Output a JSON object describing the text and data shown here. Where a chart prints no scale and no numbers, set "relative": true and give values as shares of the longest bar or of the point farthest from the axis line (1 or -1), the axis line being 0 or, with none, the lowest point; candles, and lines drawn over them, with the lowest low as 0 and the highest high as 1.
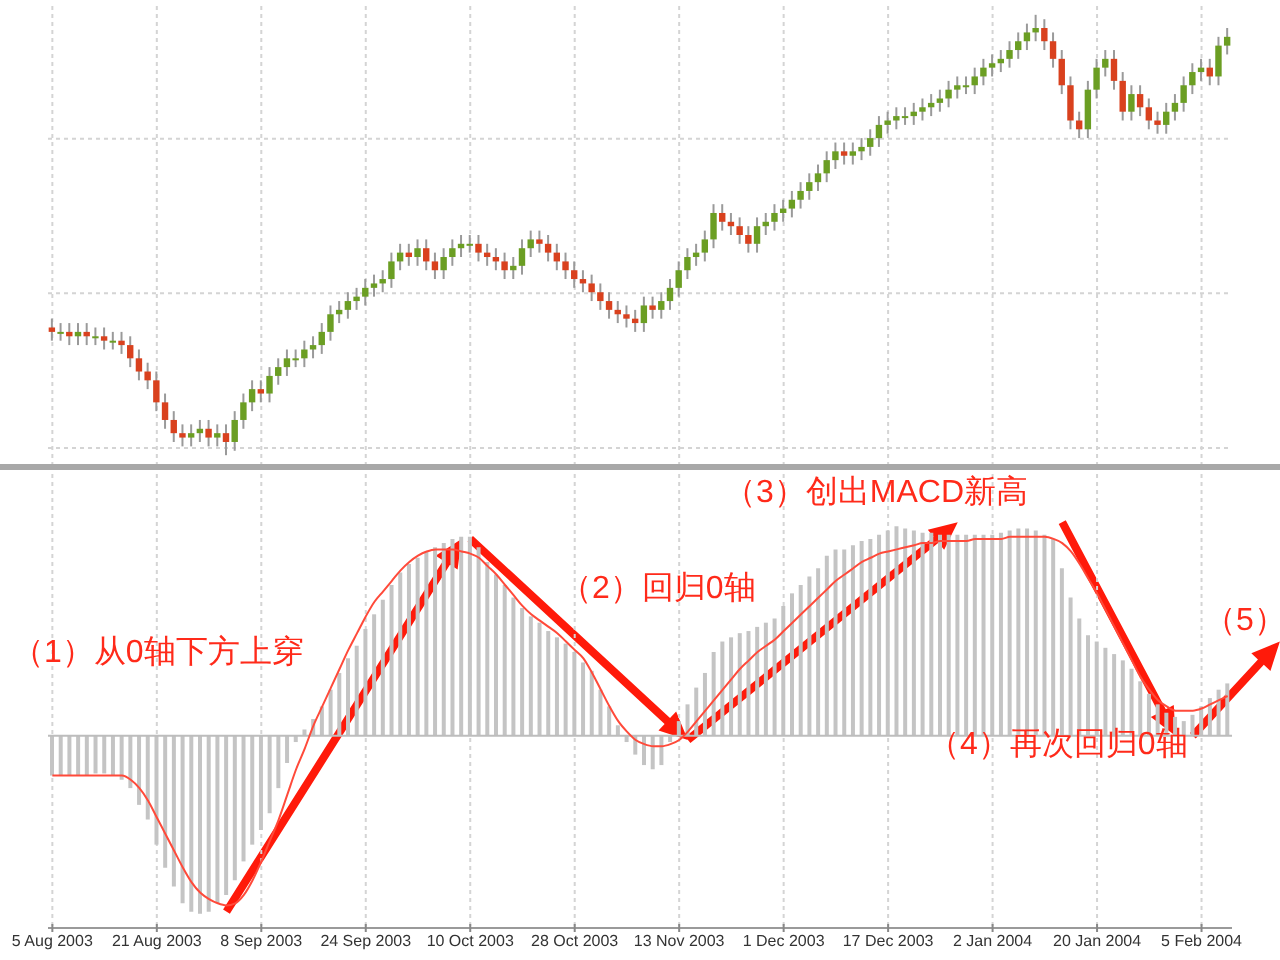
{
  "chart_data": [
    {
      "type": "candlestick",
      "relative": true,
      "grid": true,
      "ohlc": [
        [
          0.29,
          0.31,
          0.26,
          0.28
        ],
        [
          0.28,
          0.3,
          0.26,
          0.28
        ],
        [
          0.28,
          0.3,
          0.25,
          0.27
        ],
        [
          0.27,
          0.3,
          0.25,
          0.28
        ],
        [
          0.28,
          0.3,
          0.25,
          0.27
        ],
        [
          0.27,
          0.29,
          0.25,
          0.27
        ],
        [
          0.27,
          0.29,
          0.24,
          0.26
        ],
        [
          0.26,
          0.28,
          0.24,
          0.26
        ],
        [
          0.26,
          0.28,
          0.23,
          0.25
        ],
        [
          0.25,
          0.27,
          0.2,
          0.22
        ],
        [
          0.22,
          0.24,
          0.17,
          0.19
        ],
        [
          0.19,
          0.21,
          0.15,
          0.17
        ],
        [
          0.17,
          0.19,
          0.1,
          0.12
        ],
        [
          0.12,
          0.14,
          0.06,
          0.08
        ],
        [
          0.08,
          0.1,
          0.03,
          0.05
        ],
        [
          0.05,
          0.07,
          0.02,
          0.04
        ],
        [
          0.04,
          0.07,
          0.02,
          0.05
        ],
        [
          0.05,
          0.08,
          0.03,
          0.06
        ],
        [
          0.06,
          0.08,
          0.02,
          0.04
        ],
        [
          0.04,
          0.07,
          0.02,
          0.05
        ],
        [
          0.05,
          0.07,
          0.0,
          0.03
        ],
        [
          0.03,
          0.1,
          0.01,
          0.08
        ],
        [
          0.08,
          0.14,
          0.06,
          0.12
        ],
        [
          0.12,
          0.17,
          0.1,
          0.15
        ],
        [
          0.15,
          0.17,
          0.12,
          0.14
        ],
        [
          0.14,
          0.2,
          0.12,
          0.18
        ],
        [
          0.18,
          0.22,
          0.16,
          0.2
        ],
        [
          0.2,
          0.24,
          0.18,
          0.22
        ],
        [
          0.22,
          0.24,
          0.2,
          0.22
        ],
        [
          0.22,
          0.26,
          0.2,
          0.24
        ],
        [
          0.24,
          0.27,
          0.22,
          0.25
        ],
        [
          0.25,
          0.3,
          0.23,
          0.28
        ],
        [
          0.28,
          0.34,
          0.26,
          0.32
        ],
        [
          0.32,
          0.35,
          0.3,
          0.33
        ],
        [
          0.33,
          0.37,
          0.31,
          0.35
        ],
        [
          0.35,
          0.38,
          0.33,
          0.36
        ],
        [
          0.36,
          0.4,
          0.34,
          0.38
        ],
        [
          0.38,
          0.41,
          0.36,
          0.39
        ],
        [
          0.39,
          0.42,
          0.37,
          0.4
        ],
        [
          0.4,
          0.46,
          0.38,
          0.44
        ],
        [
          0.44,
          0.48,
          0.42,
          0.46
        ],
        [
          0.46,
          0.48,
          0.43,
          0.45
        ],
        [
          0.45,
          0.49,
          0.43,
          0.47
        ],
        [
          0.47,
          0.49,
          0.42,
          0.44
        ],
        [
          0.44,
          0.46,
          0.4,
          0.42
        ],
        [
          0.42,
          0.47,
          0.4,
          0.45
        ],
        [
          0.45,
          0.49,
          0.43,
          0.47
        ],
        [
          0.47,
          0.5,
          0.45,
          0.48
        ],
        [
          0.48,
          0.5,
          0.46,
          0.48
        ],
        [
          0.48,
          0.5,
          0.44,
          0.46
        ],
        [
          0.46,
          0.48,
          0.43,
          0.45
        ],
        [
          0.45,
          0.47,
          0.42,
          0.44
        ],
        [
          0.44,
          0.46,
          0.4,
          0.42
        ],
        [
          0.42,
          0.45,
          0.4,
          0.43
        ],
        [
          0.43,
          0.49,
          0.41,
          0.47
        ],
        [
          0.47,
          0.51,
          0.45,
          0.49
        ],
        [
          0.49,
          0.51,
          0.46,
          0.48
        ],
        [
          0.48,
          0.5,
          0.44,
          0.46
        ],
        [
          0.46,
          0.48,
          0.42,
          0.44
        ],
        [
          0.44,
          0.46,
          0.4,
          0.42
        ],
        [
          0.42,
          0.44,
          0.38,
          0.4
        ],
        [
          0.4,
          0.42,
          0.37,
          0.39
        ],
        [
          0.39,
          0.41,
          0.35,
          0.37
        ],
        [
          0.37,
          0.39,
          0.33,
          0.35
        ],
        [
          0.35,
          0.37,
          0.31,
          0.33
        ],
        [
          0.33,
          0.35,
          0.3,
          0.32
        ],
        [
          0.32,
          0.34,
          0.29,
          0.31
        ],
        [
          0.31,
          0.33,
          0.28,
          0.3
        ],
        [
          0.3,
          0.36,
          0.28,
          0.34
        ],
        [
          0.34,
          0.36,
          0.31,
          0.33
        ],
        [
          0.33,
          0.37,
          0.31,
          0.35
        ],
        [
          0.35,
          0.4,
          0.33,
          0.38
        ],
        [
          0.38,
          0.44,
          0.36,
          0.42
        ],
        [
          0.42,
          0.47,
          0.4,
          0.45
        ],
        [
          0.45,
          0.48,
          0.43,
          0.46
        ],
        [
          0.46,
          0.51,
          0.44,
          0.49
        ],
        [
          0.49,
          0.57,
          0.47,
          0.55
        ],
        [
          0.55,
          0.57,
          0.51,
          0.53
        ],
        [
          0.53,
          0.55,
          0.5,
          0.52
        ],
        [
          0.52,
          0.54,
          0.48,
          0.5
        ],
        [
          0.5,
          0.52,
          0.46,
          0.48
        ],
        [
          0.48,
          0.54,
          0.46,
          0.52
        ],
        [
          0.52,
          0.55,
          0.5,
          0.53
        ],
        [
          0.53,
          0.57,
          0.51,
          0.55
        ],
        [
          0.55,
          0.58,
          0.53,
          0.56
        ],
        [
          0.56,
          0.6,
          0.54,
          0.58
        ],
        [
          0.58,
          0.62,
          0.56,
          0.6
        ],
        [
          0.6,
          0.64,
          0.58,
          0.62
        ],
        [
          0.62,
          0.66,
          0.6,
          0.64
        ],
        [
          0.64,
          0.69,
          0.62,
          0.67
        ],
        [
          0.67,
          0.71,
          0.65,
          0.69
        ],
        [
          0.69,
          0.71,
          0.66,
          0.68
        ],
        [
          0.68,
          0.71,
          0.66,
          0.69
        ],
        [
          0.69,
          0.72,
          0.67,
          0.7
        ],
        [
          0.7,
          0.74,
          0.68,
          0.72
        ],
        [
          0.72,
          0.77,
          0.7,
          0.75
        ],
        [
          0.75,
          0.78,
          0.73,
          0.76
        ],
        [
          0.76,
          0.79,
          0.74,
          0.77
        ],
        [
          0.77,
          0.79,
          0.75,
          0.77
        ],
        [
          0.77,
          0.8,
          0.75,
          0.78
        ],
        [
          0.78,
          0.81,
          0.76,
          0.79
        ],
        [
          0.79,
          0.82,
          0.77,
          0.8
        ],
        [
          0.8,
          0.83,
          0.78,
          0.81
        ],
        [
          0.81,
          0.85,
          0.79,
          0.83
        ],
        [
          0.83,
          0.86,
          0.81,
          0.84
        ],
        [
          0.84,
          0.86,
          0.82,
          0.84
        ],
        [
          0.84,
          0.88,
          0.82,
          0.86
        ],
        [
          0.86,
          0.9,
          0.84,
          0.88
        ],
        [
          0.88,
          0.91,
          0.86,
          0.89
        ],
        [
          0.89,
          0.92,
          0.87,
          0.9
        ],
        [
          0.9,
          0.94,
          0.88,
          0.92
        ],
        [
          0.92,
          0.96,
          0.9,
          0.94
        ],
        [
          0.94,
          0.98,
          0.92,
          0.96
        ],
        [
          0.96,
          1.0,
          0.94,
          0.97
        ],
        [
          0.97,
          0.99,
          0.92,
          0.94
        ],
        [
          0.94,
          0.96,
          0.88,
          0.9
        ],
        [
          0.9,
          0.92,
          0.82,
          0.84
        ],
        [
          0.84,
          0.86,
          0.74,
          0.76
        ],
        [
          0.76,
          0.78,
          0.72,
          0.74
        ],
        [
          0.74,
          0.85,
          0.72,
          0.83
        ],
        [
          0.83,
          0.9,
          0.81,
          0.88
        ],
        [
          0.88,
          0.92,
          0.86,
          0.9
        ],
        [
          0.9,
          0.92,
          0.83,
          0.85
        ],
        [
          0.85,
          0.87,
          0.76,
          0.78
        ],
        [
          0.78,
          0.84,
          0.76,
          0.82
        ],
        [
          0.82,
          0.84,
          0.77,
          0.79
        ],
        [
          0.79,
          0.81,
          0.74,
          0.76
        ],
        [
          0.76,
          0.78,
          0.73,
          0.75
        ],
        [
          0.75,
          0.8,
          0.73,
          0.78
        ],
        [
          0.78,
          0.82,
          0.76,
          0.8
        ],
        [
          0.8,
          0.86,
          0.78,
          0.84
        ],
        [
          0.84,
          0.89,
          0.82,
          0.87
        ],
        [
          0.87,
          0.9,
          0.85,
          0.88
        ],
        [
          0.88,
          0.9,
          0.84,
          0.86
        ],
        [
          0.86,
          0.95,
          0.84,
          0.93
        ],
        [
          0.93,
          0.97,
          0.91,
          0.95
        ]
      ]
    },
    {
      "type": "bar",
      "relative": true,
      "grid": "x",
      "categories": [
        "5 Aug 2003",
        null,
        null,
        null,
        null,
        null,
        null,
        null,
        null,
        null,
        null,
        null,
        "21 Aug 2003",
        null,
        null,
        null,
        null,
        null,
        null,
        null,
        null,
        null,
        null,
        null,
        "8 Sep 2003",
        null,
        null,
        null,
        null,
        null,
        null,
        null,
        null,
        null,
        null,
        null,
        "24 Sep 2003",
        null,
        null,
        null,
        null,
        null,
        null,
        null,
        null,
        null,
        null,
        null,
        "10 Oct 2003",
        null,
        null,
        null,
        null,
        null,
        null,
        null,
        null,
        null,
        null,
        null,
        "28 Oct 2003",
        null,
        null,
        null,
        null,
        null,
        null,
        null,
        null,
        null,
        null,
        null,
        "13 Nov 2003",
        null,
        null,
        null,
        null,
        null,
        null,
        null,
        null,
        null,
        null,
        null,
        "1 Dec 2003",
        null,
        null,
        null,
        null,
        null,
        null,
        null,
        null,
        null,
        null,
        null,
        "17 Dec 2003",
        null,
        null,
        null,
        null,
        null,
        null,
        null,
        null,
        null,
        null,
        null,
        "2 Jan 2004",
        null,
        null,
        null,
        null,
        null,
        null,
        null,
        null,
        null,
        null,
        null,
        "20 Jan 2004",
        null,
        null,
        null,
        null,
        null,
        null,
        null,
        null,
        null,
        null,
        null,
        "5 Feb 2004",
        null,
        null,
        null
      ],
      "series": [
        {
          "type": "bar",
          "color": "#c4c4c4",
          "values": [
            -0.19,
            -0.19,
            -0.19,
            -0.19,
            -0.19,
            -0.18,
            -0.18,
            -0.19,
            -0.21,
            -0.25,
            -0.33,
            -0.4,
            -0.52,
            -0.63,
            -0.72,
            -0.8,
            -0.84,
            -0.85,
            -0.84,
            -0.8,
            -0.76,
            -0.69,
            -0.6,
            -0.52,
            -0.45,
            -0.37,
            -0.25,
            -0.13,
            -0.03,
            0.03,
            0.08,
            0.14,
            0.22,
            0.3,
            0.37,
            0.43,
            0.51,
            0.58,
            0.65,
            0.72,
            0.78,
            0.82,
            0.85,
            0.88,
            0.9,
            0.92,
            0.94,
            0.95,
            0.95,
            0.9,
            0.83,
            0.77,
            0.72,
            0.66,
            0.61,
            0.57,
            0.54,
            0.5,
            0.47,
            0.44,
            0.4,
            0.35,
            0.31,
            0.22,
            0.14,
            0.05,
            -0.03,
            -0.09,
            -0.14,
            -0.16,
            -0.14,
            -0.03,
            0.07,
            0.15,
            0.23,
            0.3,
            0.4,
            0.45,
            0.47,
            0.49,
            0.5,
            0.52,
            0.54,
            0.56,
            0.62,
            0.68,
            0.72,
            0.76,
            0.8,
            0.86,
            0.89,
            0.89,
            0.91,
            0.93,
            0.94,
            0.96,
            0.98,
            1.0,
            0.99,
            0.98,
            0.97,
            0.97,
            0.96,
            0.96,
            0.96,
            0.96,
            0.96,
            0.96,
            0.96,
            0.97,
            0.98,
            0.99,
            0.99,
            0.98,
            0.96,
            0.94,
            0.8,
            0.66,
            0.56,
            0.48,
            0.45,
            0.42,
            0.39,
            0.36,
            0.32,
            0.26,
            0.2,
            0.15,
            0.11,
            0.09,
            0.07,
            0.1,
            0.14,
            0.18,
            0.22,
            0.25
          ]
        },
        {
          "type": "line",
          "color": "#ff4a3a",
          "values": [
            -0.19,
            -0.19,
            -0.19,
            -0.19,
            -0.19,
            -0.19,
            -0.19,
            -0.19,
            -0.19,
            -0.21,
            -0.25,
            -0.31,
            -0.39,
            -0.47,
            -0.55,
            -0.63,
            -0.7,
            -0.75,
            -0.78,
            -0.8,
            -0.81,
            -0.8,
            -0.76,
            -0.69,
            -0.6,
            -0.5,
            -0.4,
            -0.28,
            -0.16,
            -0.06,
            0.05,
            0.14,
            0.23,
            0.32,
            0.41,
            0.49,
            0.57,
            0.64,
            0.69,
            0.74,
            0.79,
            0.83,
            0.86,
            0.88,
            0.89,
            0.89,
            0.89,
            0.88,
            0.87,
            0.85,
            0.81,
            0.77,
            0.72,
            0.67,
            0.62,
            0.58,
            0.55,
            0.52,
            0.49,
            0.45,
            0.41,
            0.37,
            0.3,
            0.22,
            0.14,
            0.07,
            0.02,
            -0.02,
            -0.04,
            -0.05,
            -0.05,
            -0.04,
            -0.02,
            0.02,
            0.07,
            0.12,
            0.17,
            0.22,
            0.27,
            0.32,
            0.36,
            0.4,
            0.43,
            0.46,
            0.5,
            0.54,
            0.58,
            0.62,
            0.66,
            0.7,
            0.74,
            0.77,
            0.8,
            0.83,
            0.85,
            0.87,
            0.88,
            0.89,
            0.9,
            0.91,
            0.92,
            0.92,
            0.93,
            0.93,
            0.93,
            0.93,
            0.94,
            0.94,
            0.94,
            0.94,
            0.95,
            0.95,
            0.95,
            0.95,
            0.95,
            0.94,
            0.92,
            0.88,
            0.82,
            0.75,
            0.68,
            0.6,
            0.52,
            0.44,
            0.36,
            0.28,
            0.22,
            0.17,
            0.14,
            0.12,
            0.12,
            0.12,
            0.13,
            0.15,
            0.17,
            0.19
          ]
        }
      ],
      "annotations": [
        "（1）从0轴下方上穿",
        "（2）回归0轴",
        "（3）创出MACD新高",
        "（4）再次回归0轴",
        "（5）"
      ]
    }
  ]
}
